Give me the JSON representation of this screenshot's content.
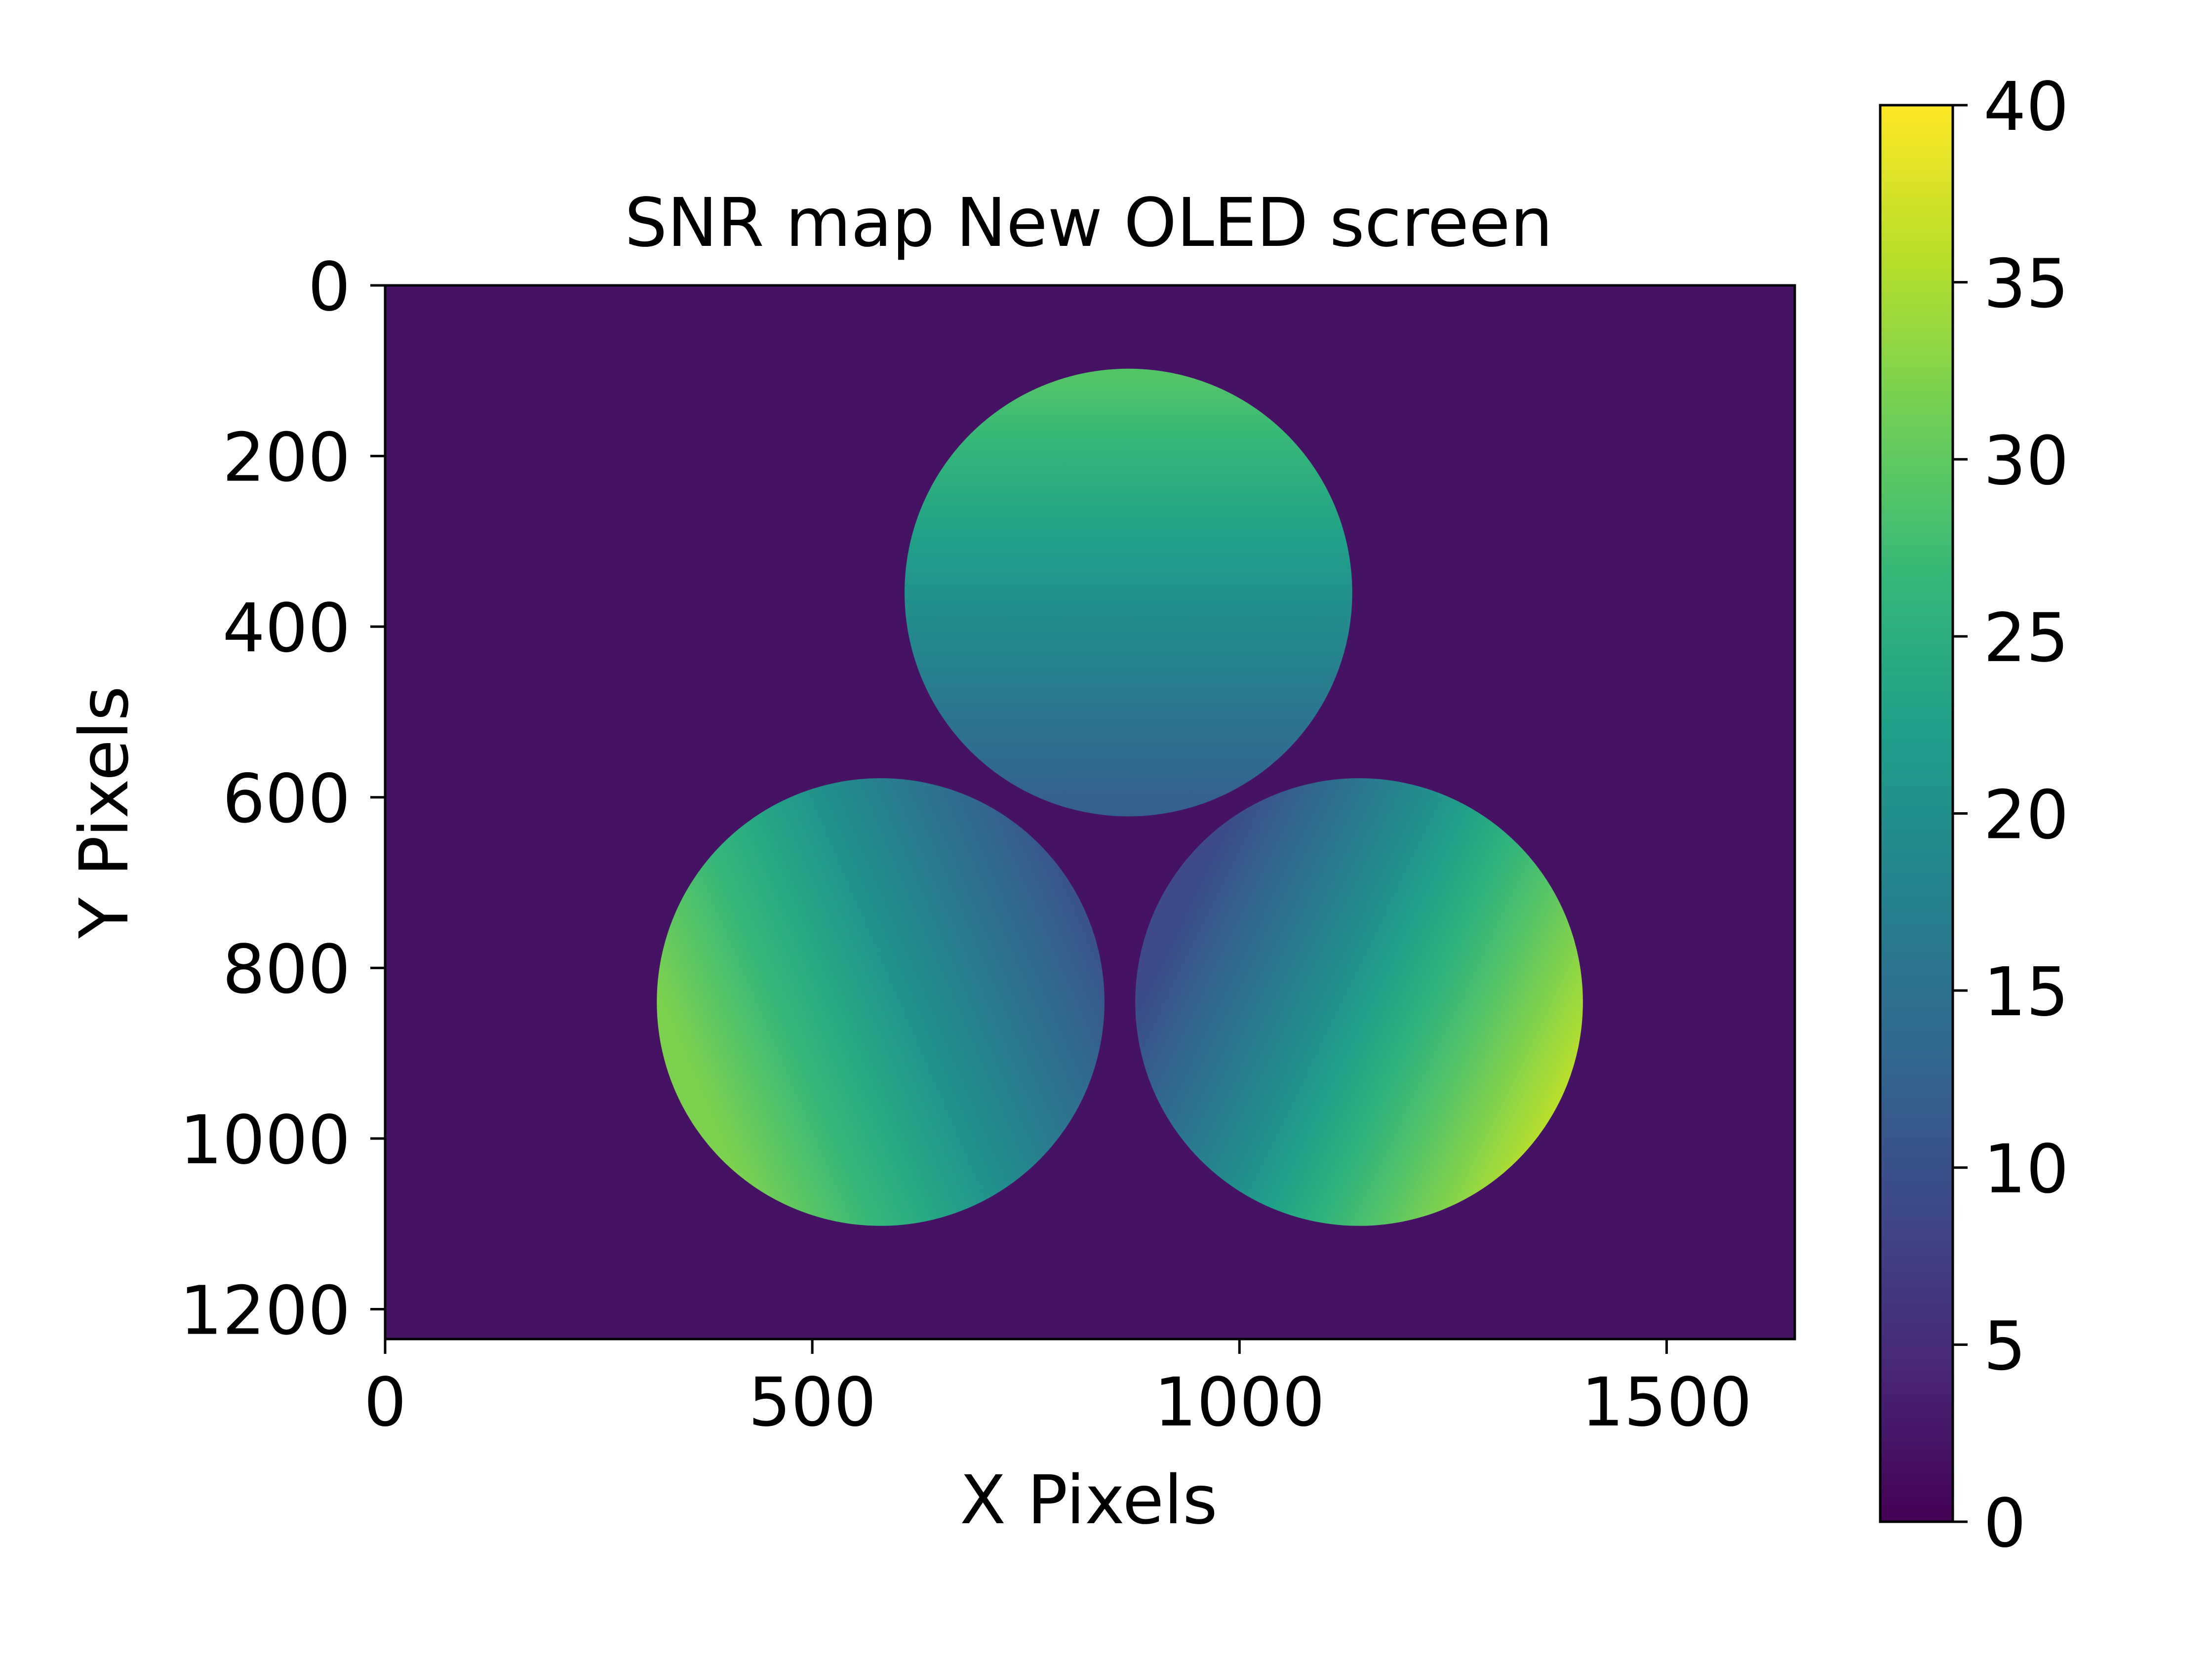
{
  "chart_data": {
    "type": "heatmap",
    "title": "SNR map New OLED screen",
    "xlabel": "X Pixels",
    "ylabel": "Y Pixels",
    "xlim": [
      0,
      1650
    ],
    "ylim": [
      1235,
      0
    ],
    "xticks": [
      0,
      500,
      1000,
      1500
    ],
    "xtick_labels": [
      "0",
      "500",
      "1000",
      "1500"
    ],
    "yticks": [
      0,
      200,
      400,
      600,
      800,
      1000,
      1200
    ],
    "ytick_labels": [
      "0",
      "200",
      "400",
      "600",
      "800",
      "1000",
      "1200"
    ],
    "background_value": 2,
    "regions": [
      {
        "name": "top-circle",
        "center": [
          870,
          360
        ],
        "radius": 262,
        "gradient_start": [
          870,
          110
        ],
        "gradient_end": [
          870,
          610
        ],
        "value_start": 29,
        "value_end": 12
      },
      {
        "name": "bottom-left-circle",
        "center": [
          580,
          840
        ],
        "radius": 262,
        "gradient_start": [
          360,
          920
        ],
        "gradient_end": [
          820,
          720
        ],
        "value_start": 32,
        "value_end": 10
      },
      {
        "name": "bottom-right-circle",
        "center": [
          1140,
          840
        ],
        "radius": 262,
        "gradient_start": [
          1380,
          950
        ],
        "gradient_end": [
          930,
          730
        ],
        "value_start": 36,
        "value_end": 9
      }
    ],
    "colorbar": {
      "colormap": "viridis",
      "min": 0,
      "max": 40,
      "ticks": [
        0,
        5,
        10,
        15,
        20,
        25,
        30,
        35,
        40
      ],
      "tick_labels": [
        "0",
        "5",
        "10",
        "15",
        "20",
        "25",
        "30",
        "35",
        "40"
      ]
    },
    "colors": {
      "viridis": [
        "#440154",
        "#482878",
        "#3e4989",
        "#31688e",
        "#26828e",
        "#1f9e89",
        "#35b779",
        "#6ece58",
        "#b5de2b",
        "#fde725"
      ]
    }
  }
}
